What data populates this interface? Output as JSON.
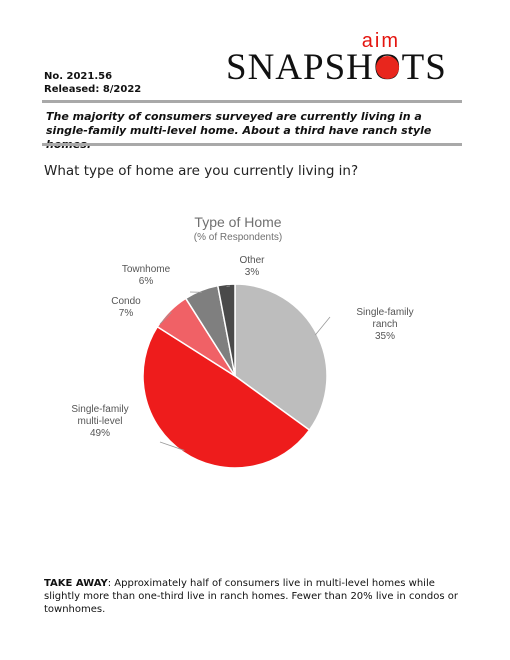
{
  "header": {
    "number": "No. 2021.56",
    "released": "Released: 8/2022",
    "logo_top": "aim",
    "logo_word": "SNAPSHOTS"
  },
  "headline": "The majority of consumers surveyed are currently living in a single-family multi-level home. About a third have ranch style homes.",
  "question": "What type of home are you currently living in?",
  "chart_data": {
    "type": "pie",
    "title": "Type of Home",
    "subtitle": "(% of Respondents)",
    "slices": [
      {
        "label_lines": [
          "Single-family",
          "ranch"
        ],
        "value": 35,
        "value_label": "35%",
        "color": "#bdbdbd"
      },
      {
        "label_lines": [
          "Single-family",
          "multi-level"
        ],
        "value": 49,
        "value_label": "49%",
        "color": "#ee1c1c"
      },
      {
        "label_lines": [
          "Condo"
        ],
        "value": 7,
        "value_label": "7%",
        "color": "#f06166"
      },
      {
        "label_lines": [
          "Townhome"
        ],
        "value": 6,
        "value_label": "6%",
        "color": "#7f7f7f"
      },
      {
        "label_lines": [
          "Other"
        ],
        "value": 3,
        "value_label": "3%",
        "color": "#4a4a4a"
      }
    ]
  },
  "takeaway": {
    "label": "TAKE AWAY",
    "text": ": Approximately half of consumers live in multi-level homes while slightly more than one-third live in ranch homes.  Fewer than 20% live in condos or townhomes."
  }
}
